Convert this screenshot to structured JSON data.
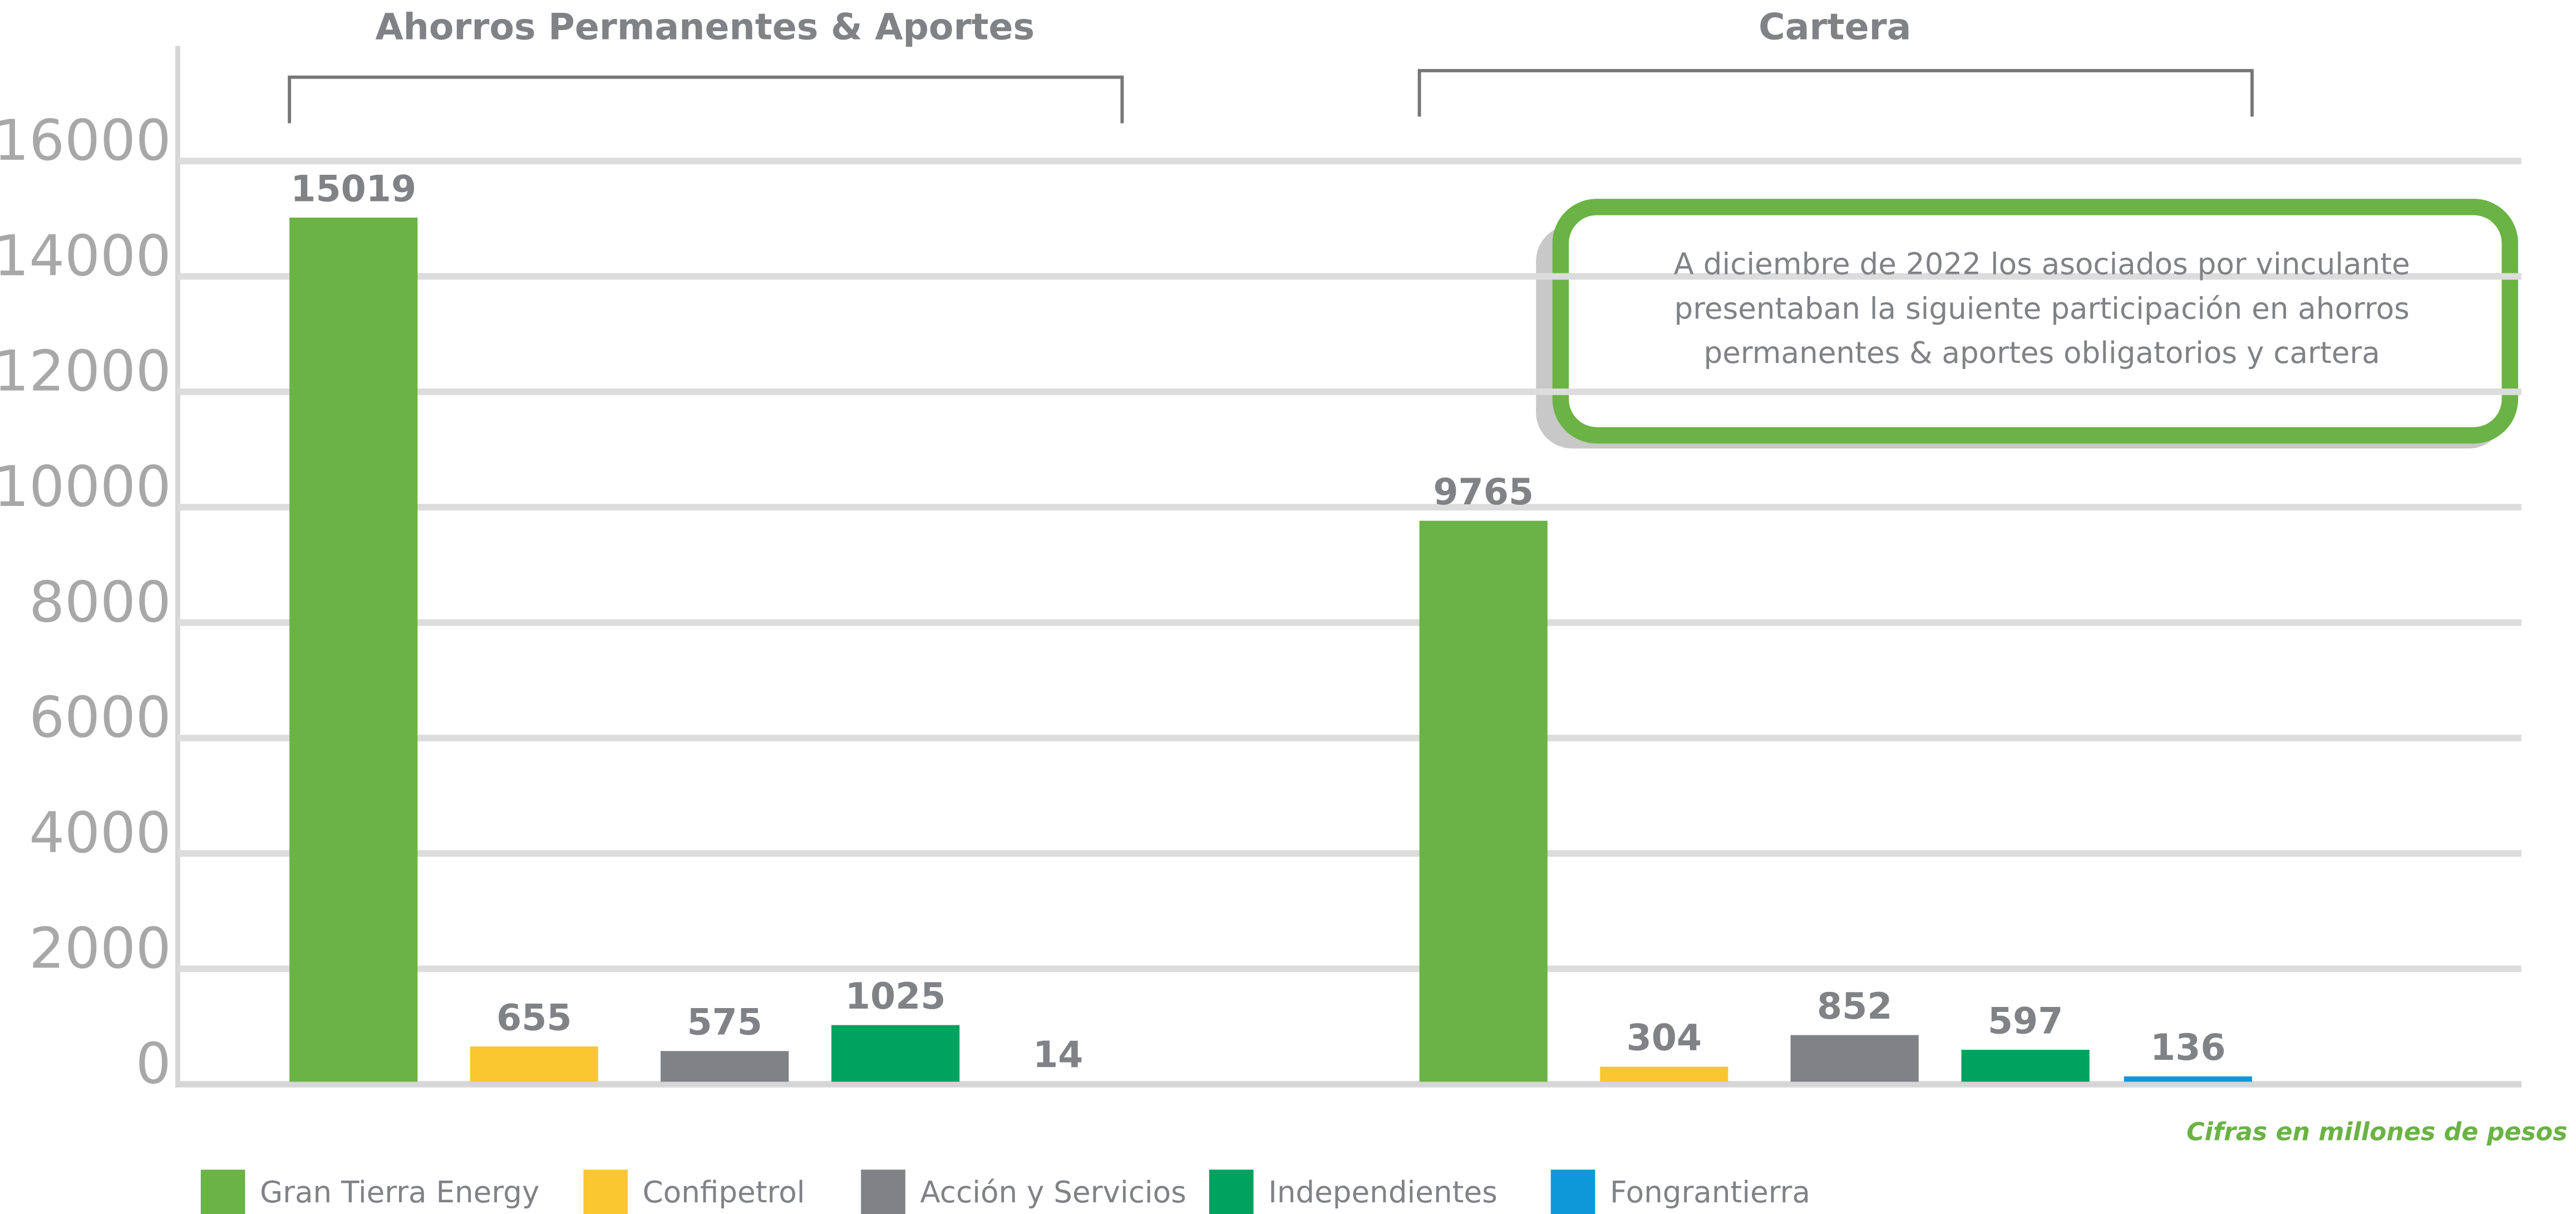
{
  "chart_data": {
    "type": "bar",
    "categories": [
      "Ahorros Permanentes & Aportes",
      "Cartera"
    ],
    "series": [
      {
        "name": "Gran Tierra Energy",
        "color": "#6ab344",
        "values": [
          15019,
          9765
        ]
      },
      {
        "name": "Confipetrol",
        "color": "#f9c72f",
        "values": [
          655,
          304
        ]
      },
      {
        "name": "Acción y Servicios",
        "color": "#808285",
        "values": [
          575,
          852
        ]
      },
      {
        "name": "Independientes",
        "color": "#00a25f",
        "values": [
          1025,
          597
        ]
      },
      {
        "name": "Fongrantierra",
        "color": "#0f98d9",
        "values": [
          14,
          136
        ]
      }
    ],
    "ylim": [
      0,
      16000
    ],
    "yticks": [
      0,
      2000,
      4000,
      6000,
      8000,
      10000,
      12000,
      14000,
      16000
    ],
    "grid": true,
    "annotation": [
      "A diciembre de 2022 los asociados por vinculante",
      "presentaban la siguiente participación en ahorros",
      "permanentes & aportes obligatorios y cartera"
    ],
    "footnote": "Cifras en millones de pesos",
    "legend": "bottom"
  }
}
